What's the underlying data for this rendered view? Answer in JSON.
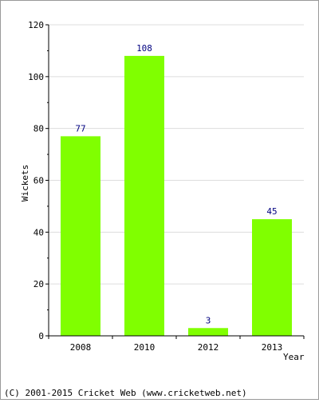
{
  "chart_data": {
    "type": "bar",
    "categories": [
      "2008",
      "2010",
      "2012",
      "2013"
    ],
    "values": [
      77,
      108,
      3,
      45
    ],
    "data_labels": [
      "77",
      "108",
      "3",
      "45"
    ],
    "xlabel": "Year",
    "ylabel": "Wickets",
    "ylim": [
      0,
      120
    ],
    "yticks": [
      0,
      20,
      40,
      60,
      80,
      100,
      120
    ],
    "ytick_labels": [
      "0",
      "20",
      "40",
      "60",
      "80",
      "100",
      "120"
    ],
    "grid": true,
    "bar_color": "#80ff00",
    "label_color": "#000080"
  },
  "footer": {
    "copyright": "(C) 2001-2015 Cricket Web (www.cricketweb.net)"
  }
}
